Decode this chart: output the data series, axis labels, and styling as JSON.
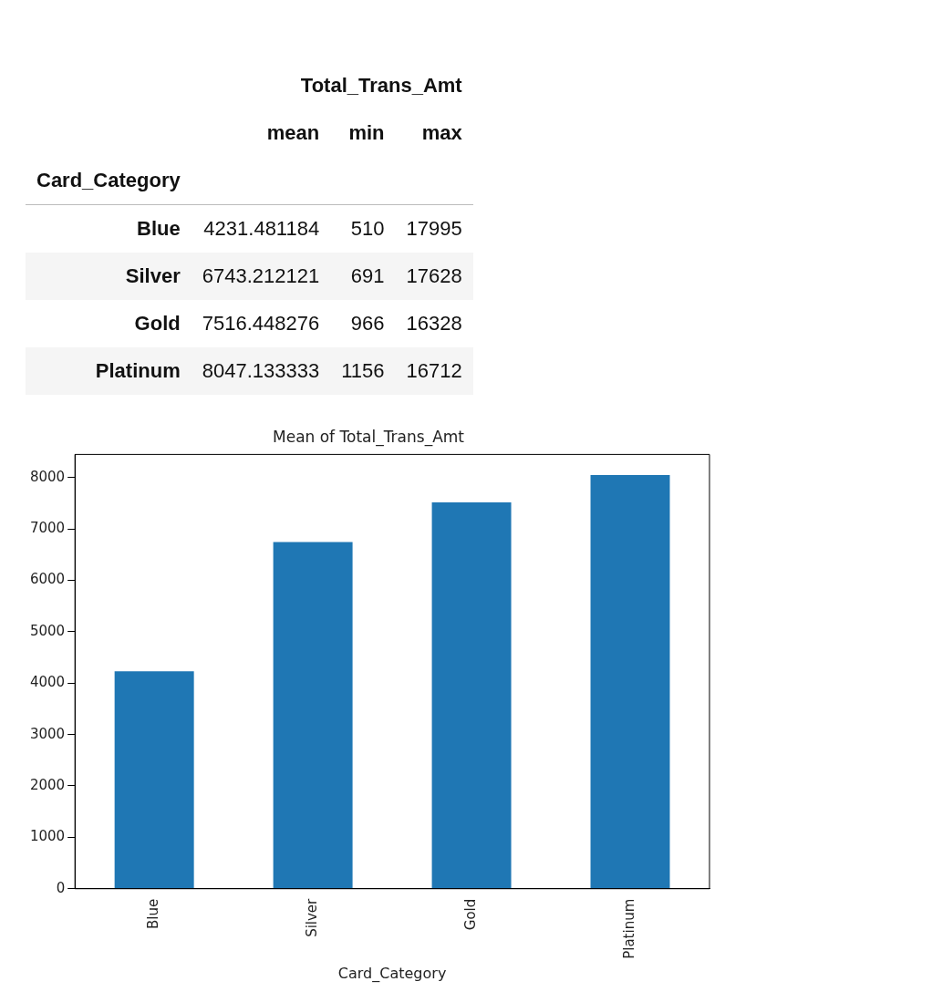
{
  "chart_data": [
    {
      "type": "heatmap",
      "title": "Total_Trans_Amt",
      "ylabel": "Card_Category",
      "data_labels": true,
      "categories": [
        "mean",
        "min",
        "max"
      ],
      "y_categories": [
        "Blue",
        "Silver",
        "Gold",
        "Platinum"
      ],
      "cells": [
        [
          4231.481184,
          510,
          17995
        ],
        [
          6743.212121,
          691,
          17628
        ],
        [
          7516.448276,
          966,
          16328
        ],
        [
          8047.133333,
          1156,
          16712
        ]
      ]
    },
    {
      "type": "bar",
      "title": "Mean of Total_Trans_Amt",
      "xlabel": "Card_Category",
      "categories": [
        "Blue",
        "Silver",
        "Gold",
        "Platinum"
      ],
      "values": [
        4231.481184,
        6743.212121,
        7516.448276,
        8047.133333
      ],
      "color": "#1f77b4",
      "ylim": [
        0,
        8450
      ],
      "yticks": [
        0,
        1000,
        2000,
        3000,
        4000,
        5000,
        6000,
        7000,
        8000
      ],
      "legend": false,
      "grid": false
    }
  ]
}
